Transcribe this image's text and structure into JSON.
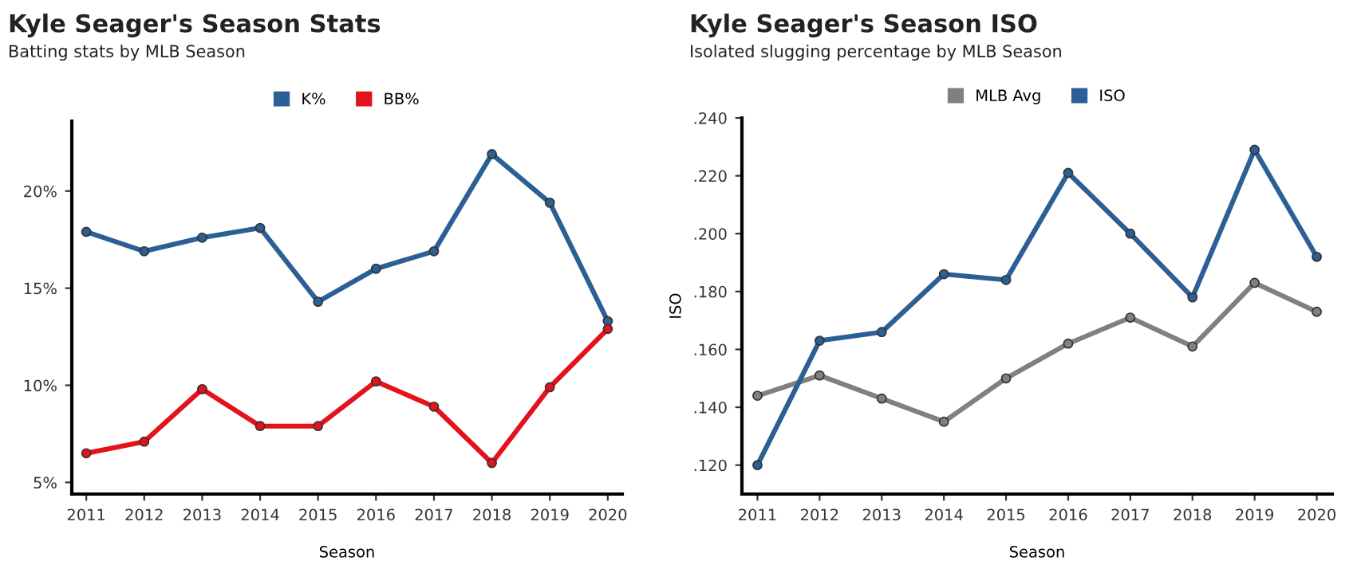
{
  "chart_data": [
    {
      "type": "line",
      "title": "Kyle Seager's Season Stats",
      "subtitle": "Batting stats by MLB Season",
      "xlabel": "Season",
      "categories": [
        "2011",
        "2012",
        "2013",
        "2014",
        "2015",
        "2016",
        "2017",
        "2018",
        "2019",
        "2020"
      ],
      "series": [
        {
          "name": "K%",
          "color": "#2c5f95",
          "values": [
            17.9,
            16.9,
            17.6,
            18.1,
            14.3,
            16.0,
            16.9,
            21.9,
            19.4,
            13.3
          ]
        },
        {
          "name": "BB%",
          "color": "#e3121b",
          "values": [
            6.5,
            7.1,
            9.8,
            7.9,
            7.9,
            10.2,
            8.9,
            6.0,
            9.9,
            12.9
          ]
        }
      ],
      "ylim": [
        4.4,
        23.6
      ],
      "yticks": [
        {
          "value": 5,
          "label": "5%"
        },
        {
          "value": 10,
          "label": "10%"
        },
        {
          "value": 15,
          "label": "15%"
        },
        {
          "value": 20,
          "label": "20%"
        }
      ],
      "legend": "top",
      "marker": "circle",
      "grid": false
    },
    {
      "type": "line",
      "title": "Kyle Seager's Season ISO",
      "subtitle": "Isolated slugging percentage by MLB Season",
      "xlabel": "Season",
      "ylabel": "ISO",
      "categories": [
        "2011",
        "2012",
        "2013",
        "2014",
        "2015",
        "2016",
        "2017",
        "2018",
        "2019",
        "2020"
      ],
      "series": [
        {
          "name": "MLB Avg",
          "color": "#808080",
          "values": [
            0.144,
            0.151,
            0.143,
            0.135,
            0.15,
            0.162,
            0.171,
            0.161,
            0.183,
            0.173
          ]
        },
        {
          "name": "ISO",
          "color": "#2c5f95",
          "values": [
            0.12,
            0.163,
            0.166,
            0.186,
            0.184,
            0.221,
            0.2,
            0.178,
            0.229,
            0.192
          ]
        }
      ],
      "ylim": [
        0.11,
        0.24
      ],
      "yticks": [
        {
          "value": 0.12,
          "label": ".120"
        },
        {
          "value": 0.14,
          "label": ".140"
        },
        {
          "value": 0.16,
          "label": ".160"
        },
        {
          "value": 0.18,
          "label": ".180"
        },
        {
          "value": 0.2,
          "label": ".200"
        },
        {
          "value": 0.22,
          "label": ".220"
        },
        {
          "value": 0.24,
          "label": ".240"
        }
      ],
      "legend": "top",
      "marker": "circle",
      "grid": false
    }
  ]
}
